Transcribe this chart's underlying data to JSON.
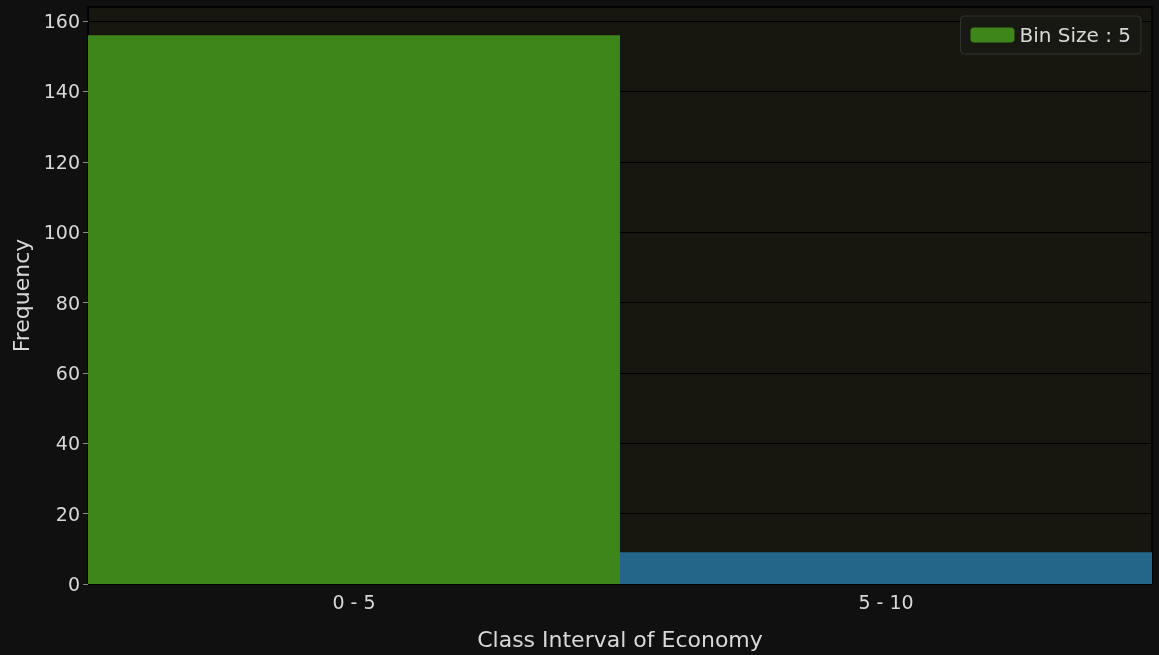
{
  "chart_data": {
    "type": "bar",
    "xlabel": "Class Interval of Economy",
    "ylabel": "Frequency",
    "categories": [
      "0 - 5",
      "5 - 10"
    ],
    "series": [
      {
        "name": "Bin Size : 5",
        "color": "#3f861a",
        "colors": [
          "#3f861a",
          "#23668a"
        ],
        "values": [
          156,
          9
        ]
      }
    ],
    "ylim": [
      0,
      164
    ],
    "yticks": [
      0,
      20,
      40,
      60,
      80,
      100,
      120,
      140,
      160
    ],
    "grid": "y",
    "legend": "top right"
  }
}
